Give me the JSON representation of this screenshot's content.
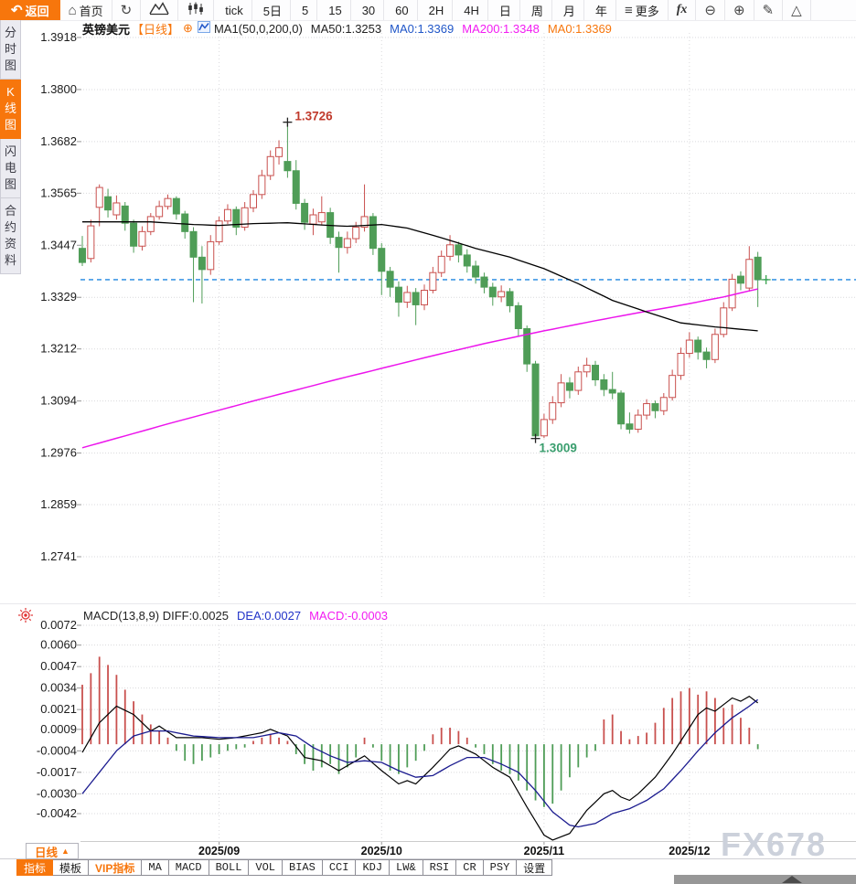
{
  "toolbar": {
    "items": [
      {
        "name": "back-button",
        "label": "返回",
        "icon": "back-arrow",
        "primary": true
      },
      {
        "name": "home-button",
        "label": "首页",
        "icon": "home"
      },
      {
        "name": "refresh-button",
        "icon": "refresh"
      },
      {
        "name": "area-chart-button",
        "icon": "area-chart"
      },
      {
        "name": "candlestick-button",
        "icon": "candlestick"
      },
      {
        "name": "interval-tick",
        "label": "tick"
      },
      {
        "name": "interval-5d",
        "label": "5日"
      },
      {
        "name": "interval-5",
        "label": "5"
      },
      {
        "name": "interval-15",
        "label": "15"
      },
      {
        "name": "interval-30",
        "label": "30"
      },
      {
        "name": "interval-60",
        "label": "60"
      },
      {
        "name": "interval-2h",
        "label": "2H"
      },
      {
        "name": "interval-4h",
        "label": "4H"
      },
      {
        "name": "interval-day",
        "label": "日"
      },
      {
        "name": "interval-week",
        "label": "周"
      },
      {
        "name": "interval-month",
        "label": "月"
      },
      {
        "name": "interval-year",
        "label": "年"
      },
      {
        "name": "more-button",
        "label": "更多",
        "icon": "hamburger"
      },
      {
        "name": "fx-button",
        "icon": "fx"
      },
      {
        "name": "zoom-out-button",
        "icon": "zoom-out"
      },
      {
        "name": "zoom-in-button",
        "icon": "zoom-in"
      },
      {
        "name": "draw-button",
        "icon": "pencil"
      },
      {
        "name": "shape-button",
        "icon": "triangle"
      }
    ]
  },
  "sidebar": {
    "items": [
      {
        "label": "分时图",
        "active": false
      },
      {
        "label": "K线图",
        "active": true
      },
      {
        "label": "闪电图",
        "active": false
      },
      {
        "label": "合约资料",
        "active": false
      }
    ]
  },
  "chart_header": {
    "symbol": "英镑美元",
    "period_tag": "【日线】",
    "add_icon": "⊕",
    "ma_settings": "MA1(50,0,200,0)",
    "legend": [
      {
        "label": "MA50:1.3253",
        "color": "#222222"
      },
      {
        "label": "MA0:1.3369",
        "color": "#2056c8"
      },
      {
        "label": "MA200:1.3348",
        "color": "#f21bf2"
      },
      {
        "label": "MA0:1.3369",
        "color": "#f7760c"
      }
    ]
  },
  "macd_header": {
    "items": [
      {
        "label": "MACD(13,8,9) DIFF:0.0025",
        "color": "#222222"
      },
      {
        "label": "DEA:0.0027",
        "color": "#2233c8"
      },
      {
        "label": "MACD:-0.0003",
        "color": "#f21bf2"
      }
    ]
  },
  "bottom": {
    "period_label": "日线",
    "period_arrow": "▲",
    "tabs": [
      {
        "label": "指标",
        "active": true
      },
      {
        "label": "模板"
      },
      {
        "label": "VIP指标",
        "vip": true
      },
      {
        "label": "MA"
      },
      {
        "label": "MACD"
      },
      {
        "label": "BOLL"
      },
      {
        "label": "VOL"
      },
      {
        "label": "BIAS"
      },
      {
        "label": "CCI"
      },
      {
        "label": "KDJ"
      },
      {
        "label": "LW&"
      },
      {
        "label": "RSI"
      },
      {
        "label": "CR"
      },
      {
        "label": "PSY"
      },
      {
        "label": "设置"
      }
    ]
  },
  "watermark": "FX678",
  "chart_data": {
    "type": "candlestick+macd",
    "symbol": "英镑美元",
    "period": "日线",
    "y_axis_ticks": [
      "1.3918",
      "1.3800",
      "1.3682",
      "1.3565",
      "1.3447",
      "1.3329",
      "1.3212",
      "1.3094",
      "1.2976",
      "1.2859",
      "1.2741"
    ],
    "macd_ticks": [
      "0.0072",
      "0.0060",
      "0.0047",
      "0.0034",
      "0.0021",
      "0.0009",
      "-0.0004",
      "-0.0017",
      "-0.0030",
      "-0.0042"
    ],
    "x_labels": [
      {
        "label": "2025/09",
        "index": 16
      },
      {
        "label": "2025/10",
        "index": 35
      },
      {
        "label": "2025/11",
        "index": 54
      },
      {
        "label": "2025/12",
        "index": 71
      }
    ],
    "annotations": {
      "high": {
        "label": "1.3726",
        "value": 1.3726,
        "index": 24
      },
      "low": {
        "label": "1.3009",
        "value": 1.3009,
        "index": 53
      },
      "last_price": 1.3369
    },
    "candles": [
      [
        1.344,
        1.3468,
        1.34,
        1.3408
      ],
      [
        1.3417,
        1.3505,
        1.3408,
        1.3491
      ],
      [
        1.3533,
        1.3585,
        1.349,
        1.3578
      ],
      [
        1.3557,
        1.3575,
        1.351,
        1.3527
      ],
      [
        1.3516,
        1.356,
        1.3505,
        1.3543
      ],
      [
        1.3536,
        1.3545,
        1.348,
        1.3497
      ],
      [
        1.3497,
        1.3505,
        1.343,
        1.3445
      ],
      [
        1.3445,
        1.349,
        1.3435,
        1.3478
      ],
      [
        1.3478,
        1.352,
        1.347,
        1.3512
      ],
      [
        1.3512,
        1.3548,
        1.3505,
        1.3535
      ],
      [
        1.3535,
        1.3562,
        1.3528,
        1.3553
      ],
      [
        1.3553,
        1.3558,
        1.3505,
        1.3518
      ],
      [
        1.3518,
        1.3525,
        1.3462,
        1.3478
      ],
      [
        1.3478,
        1.3488,
        1.3318,
        1.342
      ],
      [
        1.342,
        1.3445,
        1.3315,
        1.3392
      ],
      [
        1.3392,
        1.347,
        1.338,
        1.3455
      ],
      [
        1.3455,
        1.3512,
        1.3448,
        1.3502
      ],
      [
        1.3502,
        1.354,
        1.3495,
        1.3528
      ],
      [
        1.3528,
        1.3535,
        1.347,
        1.3488
      ],
      [
        1.3488,
        1.3545,
        1.348,
        1.3532
      ],
      [
        1.3532,
        1.3572,
        1.3522,
        1.3562
      ],
      [
        1.3562,
        1.3618,
        1.3552,
        1.3605
      ],
      [
        1.3605,
        1.3662,
        1.3595,
        1.3648
      ],
      [
        1.3648,
        1.3685,
        1.363,
        1.3668
      ],
      [
        1.3637,
        1.3726,
        1.36,
        1.3616
      ],
      [
        1.3616,
        1.364,
        1.3528,
        1.3542
      ],
      [
        1.3542,
        1.3552,
        1.3482,
        1.3499
      ],
      [
        1.3495,
        1.353,
        1.347,
        1.3516
      ],
      [
        1.35,
        1.3558,
        1.3492,
        1.3521
      ],
      [
        1.3521,
        1.3532,
        1.345,
        1.3465
      ],
      [
        1.3465,
        1.3478,
        1.3385,
        1.3442
      ],
      [
        1.3442,
        1.3478,
        1.3428,
        1.3462
      ],
      [
        1.3462,
        1.35,
        1.3452,
        1.3488
      ],
      [
        1.3488,
        1.3585,
        1.3478,
        1.3512
      ],
      [
        1.3512,
        1.352,
        1.3425,
        1.344
      ],
      [
        1.344,
        1.3452,
        1.3334,
        1.3388
      ],
      [
        1.3388,
        1.3398,
        1.333,
        1.3352
      ],
      [
        1.3352,
        1.3365,
        1.3285,
        1.3318
      ],
      [
        1.3318,
        1.3355,
        1.3305,
        1.334
      ],
      [
        1.334,
        1.335,
        1.3266,
        1.3312
      ],
      [
        1.3312,
        1.3358,
        1.33,
        1.3345
      ],
      [
        1.3345,
        1.3398,
        1.3338,
        1.3385
      ],
      [
        1.3385,
        1.3435,
        1.3375,
        1.3422
      ],
      [
        1.3422,
        1.347,
        1.3412,
        1.3448
      ],
      [
        1.3448,
        1.3455,
        1.3408,
        1.3425
      ],
      [
        1.3425,
        1.3438,
        1.3385,
        1.34
      ],
      [
        1.34,
        1.3412,
        1.336,
        1.3375
      ],
      [
        1.3375,
        1.3385,
        1.3338,
        1.3352
      ],
      [
        1.3352,
        1.3362,
        1.331,
        1.333
      ],
      [
        1.333,
        1.3356,
        1.3318,
        1.3342
      ],
      [
        1.3342,
        1.335,
        1.3295,
        1.331
      ],
      [
        1.331,
        1.3318,
        1.324,
        1.3258
      ],
      [
        1.3258,
        1.3265,
        1.316,
        1.3178
      ],
      [
        1.3178,
        1.3185,
        1.3009,
        1.3015
      ],
      [
        1.3015,
        1.3065,
        1.301,
        1.3052
      ],
      [
        1.3052,
        1.3105,
        1.3042,
        1.309
      ],
      [
        1.309,
        1.3155,
        1.308,
        1.3135
      ],
      [
        1.3135,
        1.3148,
        1.31,
        1.3118
      ],
      [
        1.3118,
        1.3172,
        1.3108,
        1.316
      ],
      [
        1.316,
        1.3192,
        1.3148,
        1.3175
      ],
      [
        1.3175,
        1.3185,
        1.3128,
        1.3142
      ],
      [
        1.3142,
        1.3155,
        1.3105,
        1.312
      ],
      [
        1.312,
        1.316,
        1.3098,
        1.3112
      ],
      [
        1.3112,
        1.3118,
        1.303,
        1.3042
      ],
      [
        1.3042,
        1.3068,
        1.302,
        1.303
      ],
      [
        1.303,
        1.3075,
        1.3022,
        1.3062
      ],
      [
        1.3062,
        1.3098,
        1.3052,
        1.3088
      ],
      [
        1.3088,
        1.3095,
        1.3055,
        1.3072
      ],
      [
        1.3072,
        1.3112,
        1.3062,
        1.3102
      ],
      [
        1.3102,
        1.3165,
        1.3095,
        1.3152
      ],
      [
        1.3152,
        1.3215,
        1.3142,
        1.3202
      ],
      [
        1.3202,
        1.325,
        1.3192,
        1.3232
      ],
      [
        1.3232,
        1.324,
        1.3188,
        1.3205
      ],
      [
        1.3205,
        1.3215,
        1.3168,
        1.3188
      ],
      [
        1.3188,
        1.3258,
        1.318,
        1.3245
      ],
      [
        1.3245,
        1.3318,
        1.3238,
        1.3305
      ],
      [
        1.3305,
        1.3382,
        1.3298,
        1.337
      ],
      [
        1.3377,
        1.3388,
        1.3345,
        1.3361
      ],
      [
        1.335,
        1.3445,
        1.3342,
        1.3415
      ],
      [
        1.342,
        1.3432,
        1.3307,
        1.3369
      ]
    ],
    "ma50_points": [
      [
        0,
        1.35
      ],
      [
        8,
        1.35
      ],
      [
        13,
        1.3494
      ],
      [
        16,
        1.3492
      ],
      [
        20,
        1.3496
      ],
      [
        24,
        1.3498
      ],
      [
        28,
        1.3493
      ],
      [
        31,
        1.349
      ],
      [
        35,
        1.3494
      ],
      [
        38,
        1.3486
      ],
      [
        42,
        1.3464
      ],
      [
        46,
        1.344
      ],
      [
        50,
        1.342
      ],
      [
        54,
        1.3394
      ],
      [
        58,
        1.336
      ],
      [
        62,
        1.3322
      ],
      [
        66,
        1.3296
      ],
      [
        70,
        1.3271
      ],
      [
        74,
        1.3262
      ],
      [
        79,
        1.3253
      ]
    ],
    "ma200_points": [
      [
        0,
        1.2988
      ],
      [
        10,
        1.3042
      ],
      [
        20,
        1.3094
      ],
      [
        30,
        1.3144
      ],
      [
        40,
        1.3192
      ],
      [
        47,
        1.3224
      ],
      [
        54,
        1.3253
      ],
      [
        60,
        1.3276
      ],
      [
        65,
        1.3294
      ],
      [
        70,
        1.3311
      ],
      [
        75,
        1.333
      ],
      [
        79,
        1.3348
      ]
    ],
    "macd": {
      "diff_points": [
        [
          0,
          -0.0005
        ],
        [
          2,
          0.0013
        ],
        [
          4,
          0.0023
        ],
        [
          6,
          0.0018
        ],
        [
          8,
          0.0008
        ],
        [
          9,
          0.0011
        ],
        [
          11,
          0.0004
        ],
        [
          14,
          0.0004
        ],
        [
          16,
          0.0003
        ],
        [
          18,
          0.0004
        ],
        [
          21,
          0.0007
        ],
        [
          22,
          0.0009
        ],
        [
          24,
          0.0005
        ],
        [
          26,
          -0.0008
        ],
        [
          28,
          -0.001
        ],
        [
          30,
          -0.0016
        ],
        [
          32,
          -0.001
        ],
        [
          33,
          -0.0007
        ],
        [
          35,
          -0.0016
        ],
        [
          37,
          -0.0024
        ],
        [
          38,
          -0.0022
        ],
        [
          39,
          -0.0024
        ],
        [
          41,
          -0.0014
        ],
        [
          43,
          -0.0003
        ],
        [
          44,
          -0.0001
        ],
        [
          46,
          -0.0006
        ],
        [
          48,
          -0.0014
        ],
        [
          50,
          -0.002
        ],
        [
          52,
          -0.0038
        ],
        [
          54,
          -0.0055
        ],
        [
          55,
          -0.0058
        ],
        [
          57,
          -0.0054
        ],
        [
          59,
          -0.004
        ],
        [
          61,
          -0.003
        ],
        [
          62,
          -0.0028
        ],
        [
          63,
          -0.0032
        ],
        [
          64,
          -0.0034
        ],
        [
          65,
          -0.003
        ],
        [
          67,
          -0.002
        ],
        [
          69,
          -0.0006
        ],
        [
          70,
          0.0002
        ],
        [
          72,
          0.0018
        ],
        [
          73,
          0.0022
        ],
        [
          74,
          0.002
        ],
        [
          75,
          0.0024
        ],
        [
          76,
          0.0028
        ],
        [
          77,
          0.0026
        ],
        [
          78,
          0.0029
        ],
        [
          79,
          0.0025
        ]
      ],
      "dea_points": [
        [
          0,
          -0.003
        ],
        [
          2,
          -0.0017
        ],
        [
          4,
          -0.0004
        ],
        [
          6,
          0.0005
        ],
        [
          8,
          0.0008
        ],
        [
          10,
          0.0008
        ],
        [
          13,
          0.0005
        ],
        [
          16,
          0.0004
        ],
        [
          20,
          0.0004
        ],
        [
          23,
          0.0007
        ],
        [
          25,
          0.0005
        ],
        [
          27,
          -0.0002
        ],
        [
          29,
          -0.0007
        ],
        [
          31,
          -0.0011
        ],
        [
          33,
          -0.001
        ],
        [
          35,
          -0.0011
        ],
        [
          37,
          -0.0016
        ],
        [
          39,
          -0.002
        ],
        [
          41,
          -0.0019
        ],
        [
          43,
          -0.0013
        ],
        [
          45,
          -0.0008
        ],
        [
          47,
          -0.0008
        ],
        [
          49,
          -0.0012
        ],
        [
          51,
          -0.0017
        ],
        [
          53,
          -0.0028
        ],
        [
          55,
          -0.0041
        ],
        [
          57,
          -0.0049
        ],
        [
          58,
          -0.005
        ],
        [
          60,
          -0.0048
        ],
        [
          62,
          -0.0042
        ],
        [
          64,
          -0.0039
        ],
        [
          66,
          -0.0034
        ],
        [
          68,
          -0.0027
        ],
        [
          70,
          -0.0016
        ],
        [
          72,
          -0.0004
        ],
        [
          74,
          0.0007
        ],
        [
          76,
          0.0016
        ],
        [
          78,
          0.0023
        ],
        [
          79,
          0.0027
        ]
      ],
      "hist": [
        0.0036,
        0.0043,
        0.0053,
        0.0048,
        0.0042,
        0.0033,
        0.0026,
        0.0018,
        0.0012,
        0.0008,
        0.0004,
        -0.0004,
        -0.001,
        -0.0012,
        -0.001,
        -0.0008,
        -0.0006,
        -0.0004,
        -0.0003,
        -0.0002,
        0.0002,
        0.0004,
        0.0006,
        0.0004,
        0.0002,
        -0.0006,
        -0.0012,
        -0.0016,
        -0.0014,
        -0.0012,
        -0.0018,
        -0.0014,
        -0.0008,
        0.0004,
        -0.0002,
        -0.001,
        -0.0016,
        -0.0018,
        -0.0014,
        -0.001,
        -0.0004,
        0.0006,
        0.001,
        0.001,
        0.0008,
        0.0004,
        -0.0002,
        -0.0006,
        -0.0012,
        -0.0016,
        -0.0018,
        -0.0022,
        -0.0028,
        -0.0034,
        -0.0038,
        -0.0036,
        -0.0028,
        -0.002,
        -0.0014,
        -0.0008,
        -0.0004,
        0.0015,
        0.0018,
        0.0008,
        0.0003,
        0.0005,
        0.0007,
        0.0013,
        0.0022,
        0.0028,
        0.0032,
        0.0034,
        0.003,
        0.0032,
        0.0028,
        0.0022,
        0.0024,
        0.0016,
        0.001,
        -0.0003
      ]
    },
    "colors": {
      "up": "#c9504e",
      "down": "#4f9d57",
      "ma50": "#000000",
      "ma200": "#ec15ec",
      "diff": "#000000",
      "dea": "#1b1b8f",
      "dashed_price": "#1f86e0",
      "high_label": "#c0392b",
      "low_label": "#3a9e6e",
      "last_cross": "#3aa34d",
      "grid": "#d9d9dc",
      "accent": "#f7760c"
    }
  }
}
